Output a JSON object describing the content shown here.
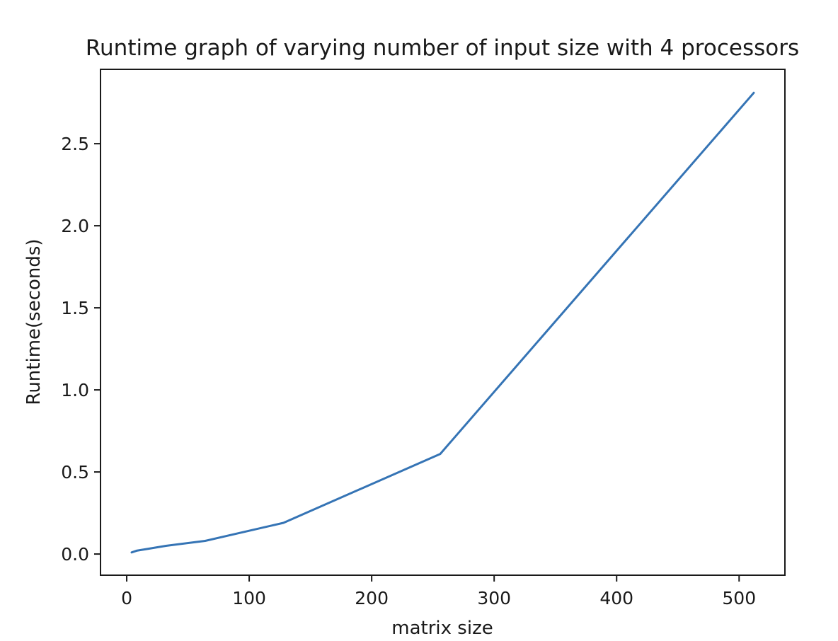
{
  "chart_data": {
    "type": "line",
    "title": "Runtime graph of varying number of input size with 4 processors",
    "xlabel": "matrix size",
    "ylabel": "Runtime(seconds)",
    "x": [
      4,
      8,
      16,
      32,
      64,
      128,
      256,
      512
    ],
    "y": [
      0.01,
      0.02,
      0.03,
      0.05,
      0.08,
      0.19,
      0.61,
      2.81
    ],
    "series": [
      {
        "name": "runtime",
        "x": [
          4,
          8,
          16,
          32,
          64,
          128,
          256,
          512
        ],
        "values": [
          0.01,
          0.02,
          0.03,
          0.05,
          0.08,
          0.19,
          0.61,
          2.81
        ]
      }
    ],
    "xticks": [
      0,
      100,
      200,
      300,
      400,
      500
    ],
    "yticks": [
      0.0,
      0.5,
      1.0,
      1.5,
      2.0,
      2.5
    ],
    "xtick_labels": [
      "0",
      "100",
      "200",
      "300",
      "400",
      "500"
    ],
    "ytick_labels": [
      "0.0",
      "0.5",
      "1.0",
      "1.5",
      "2.0",
      "2.5"
    ],
    "xlim": [
      -21.4,
      537.4
    ],
    "ylim": [
      -0.129,
      2.953
    ],
    "grid": false,
    "legend_position": "none",
    "colors": {
      "line": "#3574b5",
      "text": "#1a1a1a",
      "spine": "#1a1a1a",
      "background": "#ffffff"
    }
  }
}
